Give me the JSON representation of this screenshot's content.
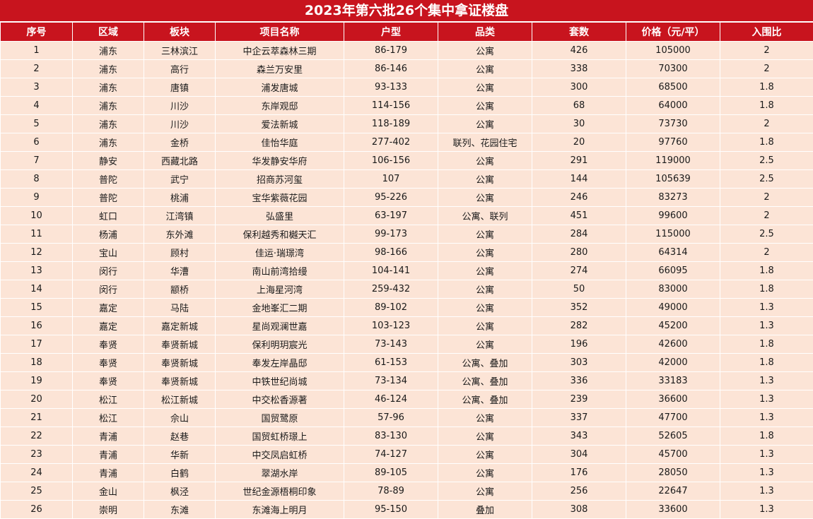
{
  "title": "2023年第六批26个集中拿证楼盘",
  "colors": {
    "header_bg": "#c8141e",
    "row_bg": "#fce4d6"
  },
  "columns": [
    "序号",
    "区域",
    "板块",
    "项目名称",
    "户型",
    "品类",
    "套数",
    "价格（元/平）",
    "入围比"
  ],
  "rows": [
    [
      "1",
      "浦东",
      "三林滨江",
      "中企云萃森林三期",
      "86-179",
      "公寓",
      "426",
      "105000",
      "2"
    ],
    [
      "2",
      "浦东",
      "高行",
      "森兰万安里",
      "86-146",
      "公寓",
      "338",
      "70300",
      "2"
    ],
    [
      "3",
      "浦东",
      "唐镇",
      "浦发唐城",
      "93-133",
      "公寓",
      "300",
      "68500",
      "1.8"
    ],
    [
      "4",
      "浦东",
      "川沙",
      "东岸观邸",
      "114-156",
      "公寓",
      "68",
      "64000",
      "1.8"
    ],
    [
      "5",
      "浦东",
      "川沙",
      "爱法新城",
      "118-189",
      "公寓",
      "30",
      "73730",
      "2"
    ],
    [
      "6",
      "浦东",
      "金桥",
      "佳怡华庭",
      "277-402",
      "联列、花园住宅",
      "20",
      "97760",
      "1.8"
    ],
    [
      "7",
      "静安",
      "西藏北路",
      "华发静安华府",
      "106-156",
      "公寓",
      "291",
      "119000",
      "2.5"
    ],
    [
      "8",
      "普陀",
      "武宁",
      "招商苏河玺",
      "107",
      "公寓",
      "144",
      "105639",
      "2.5"
    ],
    [
      "9",
      "普陀",
      "桃浦",
      "宝华紫薇花园",
      "95-226",
      "公寓",
      "246",
      "83273",
      "2"
    ],
    [
      "10",
      "虹口",
      "江湾镇",
      "弘盛里",
      "63-197",
      "公寓、联列",
      "451",
      "99600",
      "2"
    ],
    [
      "11",
      "杨浦",
      "东外滩",
      "保利越秀和樾天汇",
      "99-173",
      "公寓",
      "284",
      "115000",
      "2.5"
    ],
    [
      "12",
      "宝山",
      "顾村",
      "佳运·瑞璟湾",
      "98-166",
      "公寓",
      "280",
      "64314",
      "2"
    ],
    [
      "13",
      "闵行",
      "华漕",
      "南山前湾拾缦",
      "104-141",
      "公寓",
      "274",
      "66095",
      "1.8"
    ],
    [
      "14",
      "闵行",
      "颛桥",
      "上海星河湾",
      "259-432",
      "公寓",
      "50",
      "83000",
      "1.8"
    ],
    [
      "15",
      "嘉定",
      "马陆",
      "金地峯汇二期",
      "89-102",
      "公寓",
      "352",
      "49000",
      "1.3"
    ],
    [
      "16",
      "嘉定",
      "嘉定新城",
      "星尚观澜世嘉",
      "103-123",
      "公寓",
      "282",
      "45200",
      "1.3"
    ],
    [
      "17",
      "奉贤",
      "奉贤新城",
      "保利明玥宸光",
      "73-143",
      "公寓",
      "196",
      "42600",
      "1.8"
    ],
    [
      "18",
      "奉贤",
      "奉贤新城",
      "奉发左岸晶邸",
      "61-153",
      "公寓、叠加",
      "303",
      "42000",
      "1.8"
    ],
    [
      "19",
      "奉贤",
      "奉贤新城",
      "中铁世纪尚城",
      "73-134",
      "公寓、叠加",
      "336",
      "33183",
      "1.3"
    ],
    [
      "20",
      "松江",
      "松江新城",
      "中交松香源著",
      "46-124",
      "公寓、叠加",
      "239",
      "36600",
      "1.3"
    ],
    [
      "21",
      "松江",
      "佘山",
      "国贸鹭原",
      "57-96",
      "公寓",
      "337",
      "47700",
      "1.3"
    ],
    [
      "22",
      "青浦",
      "赵巷",
      "国贸虹桥璟上",
      "83-130",
      "公寓",
      "343",
      "52605",
      "1.8"
    ],
    [
      "23",
      "青浦",
      "华新",
      "中交凤启虹桥",
      "74-127",
      "公寓",
      "304",
      "45700",
      "1.3"
    ],
    [
      "24",
      "青浦",
      "白鹤",
      "翠湖水岸",
      "89-105",
      "公寓",
      "176",
      "28050",
      "1.3"
    ],
    [
      "25",
      "金山",
      "枫泾",
      "世纪金源梧桐印象",
      "78-89",
      "公寓",
      "256",
      "22647",
      "1.3"
    ],
    [
      "26",
      "崇明",
      "东滩",
      "东滩海上明月",
      "95-150",
      "叠加",
      "308",
      "33600",
      "1.3"
    ]
  ]
}
